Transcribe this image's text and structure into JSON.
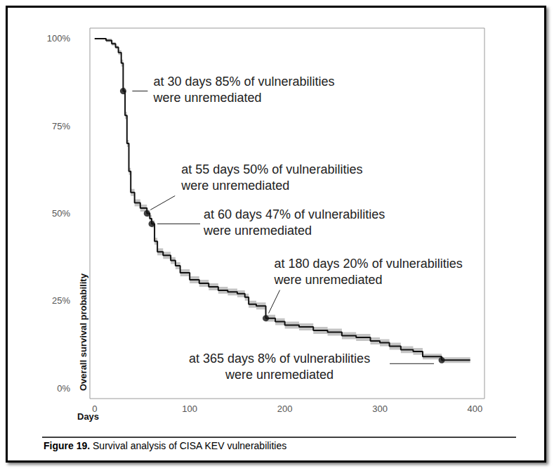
{
  "chart_data": {
    "type": "step",
    "title": "Figure 19. Survival analysis of CISA KEV vulnerabilities",
    "x_label": "Days",
    "y_label": "Overall survival probability",
    "color": "#111111",
    "grid": false,
    "xlim": [
      -5,
      410
    ],
    "xticks": [
      0,
      100,
      200,
      300,
      400
    ],
    "ylim": [
      -3,
      103
    ],
    "yticks": [
      {
        "value": 0,
        "label": "0%"
      },
      {
        "value": 25,
        "label": "25%"
      },
      {
        "value": 50,
        "label": "50%"
      },
      {
        "value": 75,
        "label": "75%"
      },
      {
        "value": 100,
        "label": "100%"
      }
    ],
    "x": [
      0,
      12,
      18,
      22,
      25,
      28,
      30,
      32,
      34,
      36,
      38,
      42,
      48,
      55,
      58,
      60,
      63,
      66,
      72,
      80,
      85,
      90,
      100,
      110,
      120,
      130,
      140,
      150,
      158,
      162,
      170,
      180,
      190,
      200,
      215,
      230,
      245,
      260,
      275,
      290,
      300,
      310,
      322,
      335,
      345,
      365,
      380,
      395
    ],
    "values": [
      100,
      99.5,
      98.5,
      97.5,
      96,
      93,
      85,
      78,
      70,
      62,
      56,
      53,
      51.5,
      50,
      48.5,
      47,
      42,
      39,
      38,
      36.5,
      35,
      33,
      31,
      30,
      29,
      28,
      27.5,
      27,
      26,
      24,
      23.5,
      20,
      19,
      18,
      17.5,
      16.5,
      16,
      15,
      14.5,
      13.5,
      13,
      12,
      11,
      10.5,
      9,
      8,
      8,
      8
    ],
    "ci_lower": [
      100,
      99,
      98,
      97,
      95.3,
      92,
      84,
      77,
      69,
      61,
      55,
      52,
      50.5,
      49,
      47.5,
      46,
      41,
      38,
      37,
      35.5,
      34,
      32,
      30,
      29,
      28,
      27,
      26.5,
      26,
      25,
      23,
      22.5,
      19,
      18,
      17,
      16.5,
      15.5,
      15,
      14,
      13.5,
      12.5,
      12,
      11,
      10,
      9.5,
      8.2,
      7.2,
      7.2,
      7.2
    ],
    "ci_upper": [
      100,
      100,
      99,
      98,
      96.7,
      94,
      86,
      79,
      71,
      63,
      57,
      54,
      52.5,
      51,
      49.5,
      48,
      43,
      40,
      39,
      37.5,
      36,
      34,
      32,
      31,
      30,
      29,
      28.5,
      28,
      27,
      25,
      24.5,
      21,
      20,
      19,
      18.5,
      17.5,
      17,
      16,
      15.5,
      14.5,
      14,
      13,
      12,
      11.5,
      9.8,
      8.8,
      8.8,
      8.8
    ],
    "annotations": [
      {
        "x": 30,
        "y": 85,
        "text": "at 30 days 85% of vulnerabilities\nwere unremediated"
      },
      {
        "x": 55,
        "y": 50,
        "text": "at 55 days 50% of vulnerabilities\nwere unremediated"
      },
      {
        "x": 60,
        "y": 47,
        "text": "at 60 days 47% of vulnerabilities\nwere unremediated"
      },
      {
        "x": 180,
        "y": 20,
        "text": "at 180 days 20% of vulnerabilities\nwere unremediated"
      },
      {
        "x": 365,
        "y": 8,
        "text": "at 365 days 8% of vulnerabilities\nwere unremediated"
      }
    ]
  }
}
